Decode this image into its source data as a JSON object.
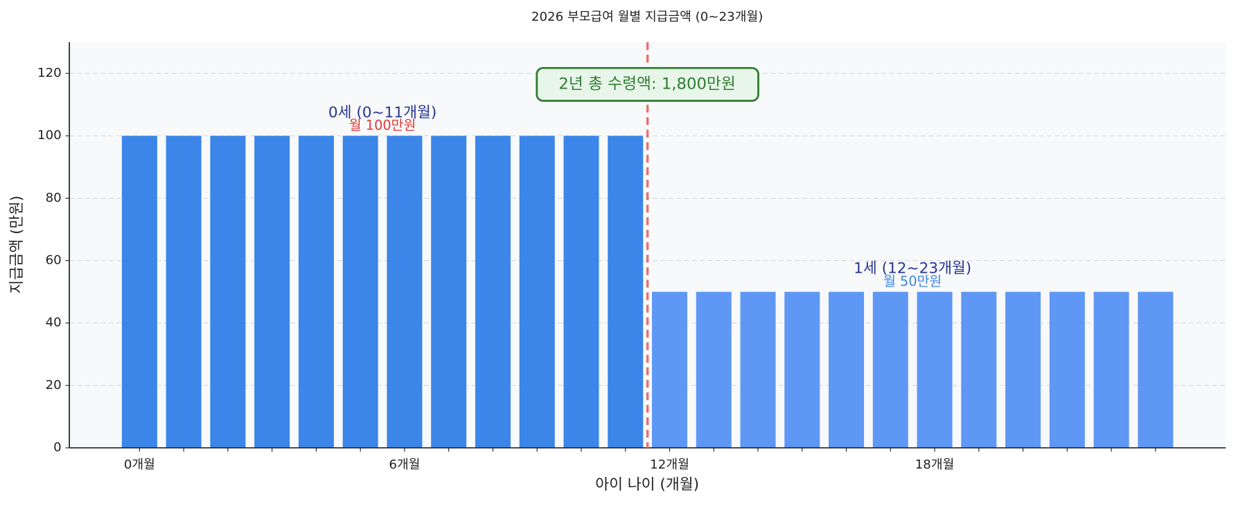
{
  "chart_data": {
    "type": "bar",
    "title": "2026 부모급여 월별 지급금액 (0~23개월)",
    "x_label": "아이 나이 (개월)",
    "y_label": "지급금액 (만원)",
    "categories": [
      "0개월",
      null,
      null,
      null,
      null,
      null,
      "6개월",
      null,
      null,
      null,
      null,
      null,
      "12개월",
      null,
      null,
      null,
      null,
      null,
      "18개월",
      null,
      null,
      null,
      null,
      null
    ],
    "values": [
      100,
      100,
      100,
      100,
      100,
      100,
      100,
      100,
      100,
      100,
      100,
      100,
      50,
      50,
      50,
      50,
      50,
      50,
      50,
      50,
      50,
      50,
      50,
      50
    ],
    "colors": [
      "#3b86e8",
      "#3b86e8",
      "#3b86e8",
      "#3b86e8",
      "#3b86e8",
      "#3b86e8",
      "#3b86e8",
      "#3b86e8",
      "#3b86e8",
      "#3b86e8",
      "#3b86e8",
      "#3b86e8",
      "#5f97f5",
      "#5f97f5",
      "#5f97f5",
      "#5f97f5",
      "#5f97f5",
      "#5f97f5",
      "#5f97f5",
      "#5f97f5",
      "#5f97f5",
      "#5f97f5",
      "#5f97f5",
      "#5f97f5"
    ],
    "ylim": [
      0,
      130
    ],
    "yticks": [
      0,
      20,
      40,
      60,
      80,
      100,
      120
    ],
    "grid": true,
    "divider_x": 11.5,
    "annotations": {
      "group1": "0세 (0~11개월)",
      "group1_amount": "월 100만원",
      "group2": "1세 (12~23개월)",
      "group2_amount": "월 50만원",
      "total": "2년 총 수령액: 1,800만원"
    }
  }
}
